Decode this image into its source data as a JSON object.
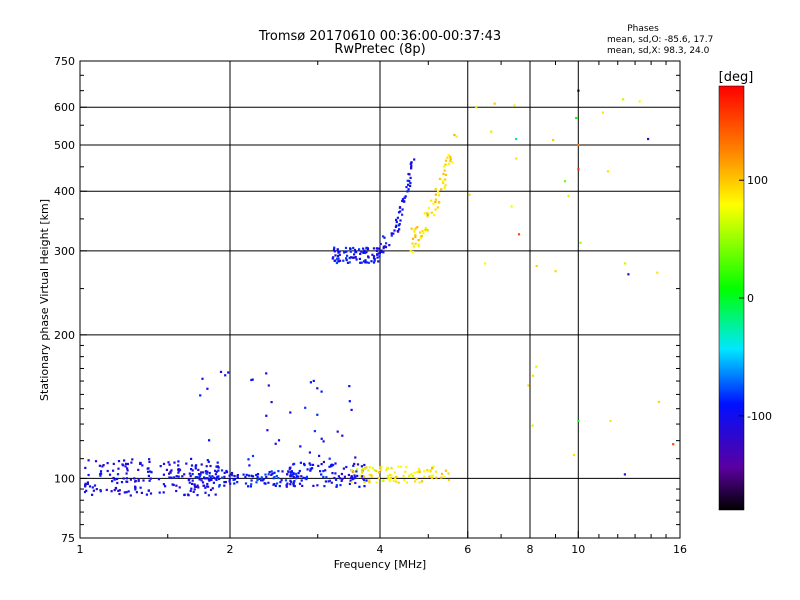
{
  "chart_data": {
    "type": "scatter",
    "title": "Tromsø 20170610 00:36:00-00:37:43",
    "subtitle": "RwPretec (8p)",
    "xlabel": "Frequency [MHz]",
    "ylabel": "Stationary phase Virtual Height [km]",
    "x_scale": "log",
    "y_scale": "log",
    "xlim": [
      1,
      16
    ],
    "ylim": [
      75,
      750
    ],
    "x_ticks": [
      1,
      2,
      4,
      6,
      8,
      10,
      16
    ],
    "y_ticks": [
      75,
      100,
      200,
      300,
      400,
      500,
      600,
      750
    ],
    "grid": true,
    "phase_stats": {
      "heading": "Phases",
      "o_mode": "mean, sd,O: -85.6, 17.7",
      "x_mode": "mean, sd,X:  98.3, 24.0"
    },
    "colorbar": {
      "label": "[deg]",
      "ticks": [
        100,
        0,
        -100
      ],
      "range": [
        -180,
        180
      ]
    },
    "point_groups": [
      {
        "x_range": [
          1.02,
          1.9
        ],
        "y_range": [
          92,
          110
        ],
        "phase": -105,
        "count": 200
      },
      {
        "x_range": [
          1.7,
          2.8
        ],
        "y_range": [
          96,
          104
        ],
        "phase": -95,
        "count": 120
      },
      {
        "x_range": [
          2.6,
          3.8
        ],
        "y_range": [
          96,
          108
        ],
        "phase": -100,
        "count": 100
      },
      {
        "x_range": [
          3.5,
          5.5
        ],
        "y_range": [
          98,
          106
        ],
        "phase": 85,
        "count": 90
      },
      {
        "x_range": [
          3.2,
          4.0
        ],
        "y_range": [
          283,
          305
        ],
        "phase": -95,
        "count": 90
      },
      {
        "x_range": [
          4.0,
          4.7
        ],
        "y_range": [
          310,
          490
        ],
        "phase": -100,
        "count": 60
      },
      {
        "x_range": [
          4.6,
          5.7
        ],
        "y_range": [
          315,
          520
        ],
        "phase": 90,
        "count": 70
      },
      {
        "x_range": [
          1.7,
          3.6
        ],
        "y_range": [
          105,
          170
        ],
        "phase": -100,
        "count": 45
      },
      {
        "x_range": [
          6.0,
          15.0
        ],
        "y_range": [
          100,
          650
        ],
        "phase": 80,
        "count": 20
      }
    ],
    "points": [
      {
        "x": 10.0,
        "y": 650,
        "phase": -175
      },
      {
        "x": 7.5,
        "y": 515,
        "phase": -20
      },
      {
        "x": 13.8,
        "y": 515,
        "phase": -120
      },
      {
        "x": 9.9,
        "y": 570,
        "phase": 5
      },
      {
        "x": 11.2,
        "y": 585,
        "phase": 90
      },
      {
        "x": 10.0,
        "y": 500,
        "phase": 130
      },
      {
        "x": 10.0,
        "y": 445,
        "phase": 160
      },
      {
        "x": 9.4,
        "y": 420,
        "phase": 40
      },
      {
        "x": 7.6,
        "y": 325,
        "phase": 150
      },
      {
        "x": 10.1,
        "y": 312,
        "phase": 50
      },
      {
        "x": 9.0,
        "y": 272,
        "phase": 95
      },
      {
        "x": 12.6,
        "y": 268,
        "phase": -110
      },
      {
        "x": 14.4,
        "y": 270,
        "phase": 90
      },
      {
        "x": 10.0,
        "y": 132,
        "phase": 5
      },
      {
        "x": 11.6,
        "y": 132,
        "phase": 90
      },
      {
        "x": 15.5,
        "y": 118,
        "phase": 150
      },
      {
        "x": 9.8,
        "y": 112,
        "phase": 90
      },
      {
        "x": 12.4,
        "y": 102,
        "phase": -115
      }
    ]
  }
}
